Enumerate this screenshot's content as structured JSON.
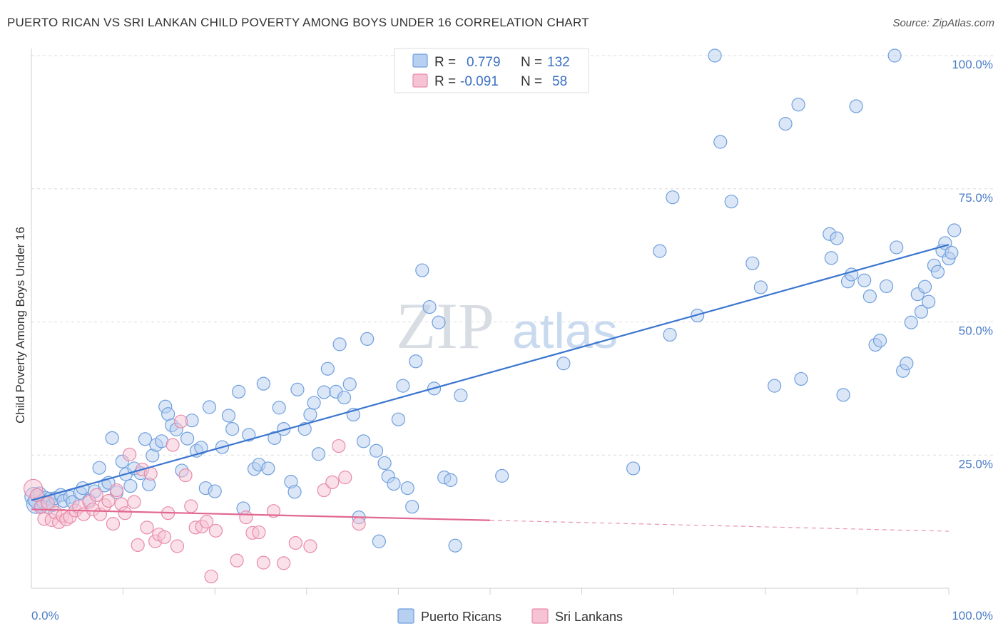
{
  "title": "PUERTO RICAN VS SRI LANKAN CHILD POVERTY AMONG BOYS UNDER 16 CORRELATION CHART",
  "source": "Source: ZipAtlas.com",
  "watermark": {
    "zip": "ZIP",
    "atlas": "atlas"
  },
  "chart_data": {
    "type": "scatter",
    "xlabel": "",
    "ylabel": "Child Poverty Among Boys Under 16",
    "xlim": [
      0,
      100
    ],
    "ylim": [
      0,
      100
    ],
    "x_tick_labels": {
      "min": "0.0%",
      "max": "100.0%"
    },
    "y_ticks": [
      {
        "value": 25,
        "label": "25.0%"
      },
      {
        "value": 50,
        "label": "50.0%"
      },
      {
        "value": 75,
        "label": "75.0%"
      },
      {
        "value": 100,
        "label": "100.0%"
      }
    ],
    "legend": {
      "r_label": "R =",
      "n_label": "N =",
      "entries": [
        {
          "name": "Puerto Ricans",
          "r": "0.779",
          "n": "132",
          "color": "#6f9fde",
          "fill": "#b7cff0"
        },
        {
          "name": "Sri Lankans",
          "r": "-0.091",
          "n": "58",
          "color": "#e98aa9",
          "fill": "#f6c3d4"
        }
      ]
    },
    "series": [
      {
        "name": "Puerto Ricans",
        "color": "#6f9fde",
        "fill": "#b7cff0",
        "trend": {
          "x0": 0,
          "y0": 16.5,
          "x1": 100,
          "y1": 64.5,
          "solid_to": 100
        },
        "points": [
          [
            0.3,
            17.2
          ],
          [
            0.5,
            15.8
          ],
          [
            0.7,
            16.6
          ],
          [
            0.9,
            17.8
          ],
          [
            1.1,
            15.4
          ],
          [
            1.3,
            16.1
          ],
          [
            1.5,
            17.0
          ],
          [
            1.8,
            15.2
          ],
          [
            2.0,
            16.8
          ],
          [
            2.3,
            15.6
          ],
          [
            2.6,
            16.9
          ],
          [
            3.2,
            17.5
          ],
          [
            3.5,
            16.4
          ],
          [
            4.2,
            17.1
          ],
          [
            4.5,
            16.2
          ],
          [
            5.3,
            17.9
          ],
          [
            5.6,
            18.8
          ],
          [
            6.3,
            16.5
          ],
          [
            6.9,
            18.2
          ],
          [
            7.4,
            22.6
          ],
          [
            8.0,
            19.3
          ],
          [
            8.4,
            19.8
          ],
          [
            8.8,
            28.2
          ],
          [
            9.3,
            18.0
          ],
          [
            9.9,
            23.8
          ],
          [
            10.3,
            21.4
          ],
          [
            10.8,
            19.2
          ],
          [
            11.2,
            22.5
          ],
          [
            11.9,
            21.6
          ],
          [
            12.4,
            28.0
          ],
          [
            12.8,
            19.5
          ],
          [
            13.2,
            24.9
          ],
          [
            13.6,
            26.9
          ],
          [
            14.2,
            27.6
          ],
          [
            14.6,
            34.1
          ],
          [
            14.9,
            32.7
          ],
          [
            15.3,
            30.6
          ],
          [
            15.8,
            29.8
          ],
          [
            16.4,
            22.1
          ],
          [
            17.0,
            28.1
          ],
          [
            17.5,
            31.5
          ],
          [
            18.0,
            25.8
          ],
          [
            18.5,
            26.4
          ],
          [
            19.0,
            18.8
          ],
          [
            19.4,
            34.0
          ],
          [
            20.0,
            18.2
          ],
          [
            20.8,
            26.5
          ],
          [
            21.5,
            32.4
          ],
          [
            21.9,
            29.9
          ],
          [
            22.6,
            36.9
          ],
          [
            23.1,
            15.0
          ],
          [
            23.7,
            28.8
          ],
          [
            24.3,
            22.4
          ],
          [
            24.8,
            23.2
          ],
          [
            25.3,
            38.4
          ],
          [
            25.8,
            22.5
          ],
          [
            26.5,
            28.2
          ],
          [
            27.0,
            33.9
          ],
          [
            27.5,
            29.9
          ],
          [
            28.3,
            20.0
          ],
          [
            28.7,
            18.1
          ],
          [
            29.0,
            37.3
          ],
          [
            29.8,
            29.9
          ],
          [
            30.4,
            32.6
          ],
          [
            30.8,
            34.8
          ],
          [
            31.3,
            25.2
          ],
          [
            31.9,
            36.8
          ],
          [
            32.3,
            41.2
          ],
          [
            33.2,
            36.9
          ],
          [
            33.6,
            45.8
          ],
          [
            34.1,
            35.8
          ],
          [
            34.7,
            38.3
          ],
          [
            35.1,
            32.6
          ],
          [
            35.7,
            13.3
          ],
          [
            36.2,
            27.6
          ],
          [
            36.6,
            46.8
          ],
          [
            37.6,
            25.8
          ],
          [
            37.9,
            8.8
          ],
          [
            38.5,
            23.5
          ],
          [
            38.9,
            21.0
          ],
          [
            39.5,
            19.6
          ],
          [
            40.0,
            31.7
          ],
          [
            40.5,
            38.0
          ],
          [
            41.0,
            18.8
          ],
          [
            41.5,
            15.3
          ],
          [
            41.9,
            42.6
          ],
          [
            42.6,
            59.7
          ],
          [
            43.4,
            52.8
          ],
          [
            43.9,
            37.5
          ],
          [
            44.4,
            49.9
          ],
          [
            45.0,
            20.8
          ],
          [
            45.7,
            20.3
          ],
          [
            46.2,
            8.0
          ],
          [
            46.8,
            36.2
          ],
          [
            51.3,
            21.1
          ],
          [
            58.0,
            42.2
          ],
          [
            65.6,
            22.5
          ],
          [
            68.5,
            63.3
          ],
          [
            69.6,
            47.6
          ],
          [
            69.9,
            73.4
          ],
          [
            72.6,
            51.2
          ],
          [
            74.5,
            100.0
          ],
          [
            75.1,
            83.8
          ],
          [
            76.3,
            72.6
          ],
          [
            78.6,
            61.0
          ],
          [
            79.5,
            56.5
          ],
          [
            81.0,
            38.0
          ],
          [
            82.2,
            87.2
          ],
          [
            83.6,
            90.8
          ],
          [
            83.9,
            39.3
          ],
          [
            87.0,
            66.5
          ],
          [
            87.2,
            62.0
          ],
          [
            87.8,
            65.7
          ],
          [
            88.5,
            36.3
          ],
          [
            89.0,
            57.6
          ],
          [
            89.4,
            58.9
          ],
          [
            89.9,
            90.5
          ],
          [
            90.8,
            57.8
          ],
          [
            91.4,
            54.8
          ],
          [
            92.0,
            45.7
          ],
          [
            92.5,
            46.5
          ],
          [
            93.2,
            56.7
          ],
          [
            94.1,
            100.0
          ],
          [
            94.3,
            64.0
          ],
          [
            95.0,
            40.8
          ],
          [
            95.4,
            42.2
          ],
          [
            95.9,
            49.9
          ],
          [
            96.6,
            55.2
          ],
          [
            97.0,
            51.9
          ],
          [
            97.4,
            56.6
          ],
          [
            97.8,
            53.8
          ],
          [
            98.4,
            60.6
          ],
          [
            98.8,
            59.4
          ],
          [
            99.3,
            63.4
          ],
          [
            99.6,
            64.8
          ],
          [
            100.0,
            61.9
          ],
          [
            100.3,
            63.0
          ],
          [
            100.6,
            67.2
          ]
        ]
      },
      {
        "name": "Sri Lankans",
        "color": "#e98aa9",
        "fill": "#f6c3d4",
        "trend": {
          "x0": 0,
          "y0": 14.8,
          "x1": 100,
          "y1": 10.7,
          "solid_to": 50
        },
        "points": [
          [
            0.2,
            18.7
          ],
          [
            0.6,
            17.5
          ],
          [
            1.0,
            15.2
          ],
          [
            1.4,
            13.0
          ],
          [
            1.8,
            16.0
          ],
          [
            2.2,
            12.8
          ],
          [
            2.6,
            14.2
          ],
          [
            3.0,
            12.4
          ],
          [
            3.4,
            13.6
          ],
          [
            3.8,
            12.9
          ],
          [
            4.2,
            13.4
          ],
          [
            4.8,
            14.6
          ],
          [
            5.2,
            15.3
          ],
          [
            5.7,
            13.9
          ],
          [
            6.3,
            16.2
          ],
          [
            6.7,
            14.8
          ],
          [
            7.1,
            17.5
          ],
          [
            7.5,
            13.9
          ],
          [
            8.0,
            15.6
          ],
          [
            8.4,
            16.4
          ],
          [
            8.9,
            12.1
          ],
          [
            9.3,
            18.4
          ],
          [
            9.8,
            15.8
          ],
          [
            10.2,
            14.1
          ],
          [
            10.7,
            25.1
          ],
          [
            11.2,
            16.2
          ],
          [
            11.6,
            8.1
          ],
          [
            12.1,
            22.3
          ],
          [
            12.6,
            11.4
          ],
          [
            13.0,
            21.5
          ],
          [
            13.5,
            8.8
          ],
          [
            13.9,
            10.1
          ],
          [
            14.5,
            9.6
          ],
          [
            14.9,
            14.1
          ],
          [
            15.4,
            26.9
          ],
          [
            15.9,
            7.9
          ],
          [
            16.3,
            31.3
          ],
          [
            16.8,
            21.2
          ],
          [
            17.4,
            15.4
          ],
          [
            17.9,
            11.4
          ],
          [
            18.6,
            11.6
          ],
          [
            19.1,
            12.5
          ],
          [
            19.6,
            2.2
          ],
          [
            20.1,
            10.8
          ],
          [
            22.4,
            5.2
          ],
          [
            23.4,
            13.3
          ],
          [
            24.1,
            10.4
          ],
          [
            24.8,
            10.5
          ],
          [
            25.3,
            4.8
          ],
          [
            26.4,
            14.5
          ],
          [
            27.5,
            4.7
          ],
          [
            28.8,
            8.5
          ],
          [
            30.4,
            7.9
          ],
          [
            31.9,
            18.4
          ],
          [
            32.8,
            19.9
          ],
          [
            33.5,
            26.7
          ],
          [
            34.2,
            20.8
          ],
          [
            35.7,
            12.1
          ]
        ]
      }
    ]
  }
}
